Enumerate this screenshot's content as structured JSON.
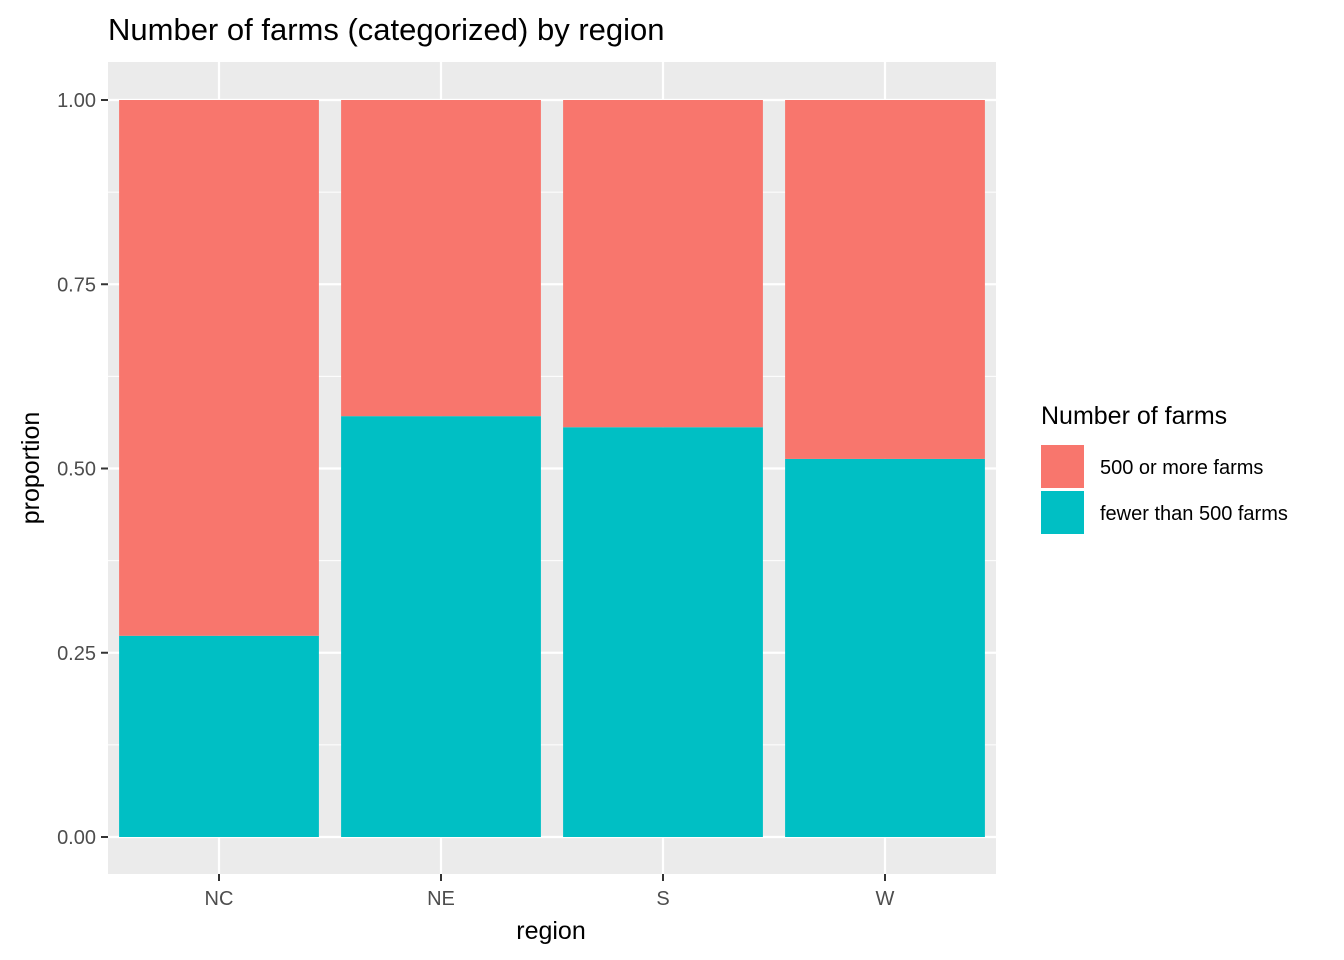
{
  "chart_data": {
    "type": "bar",
    "stacked": true,
    "title": "Number of farms (categorized) by region",
    "xlabel": "region",
    "ylabel": "proportion",
    "categories": [
      "NC",
      "NE",
      "S",
      "W"
    ],
    "ylim": [
      0,
      1
    ],
    "yticks": [
      "0.00",
      "0.25",
      "0.50",
      "0.75",
      "1.00"
    ],
    "series": [
      {
        "name": "fewer than 500 farms",
        "values": [
          0.273,
          0.571,
          0.556,
          0.513
        ],
        "color": "#00BFC4"
      },
      {
        "name": "500 or more farms",
        "values": [
          0.727,
          0.429,
          0.444,
          0.487
        ],
        "color": "#F8766D"
      }
    ],
    "legend": {
      "title": "Number of farms",
      "position": "right",
      "items": [
        "500 or more farms",
        "fewer than 500 farms"
      ]
    },
    "grid": true,
    "panel_background": "#EBEBEB"
  }
}
